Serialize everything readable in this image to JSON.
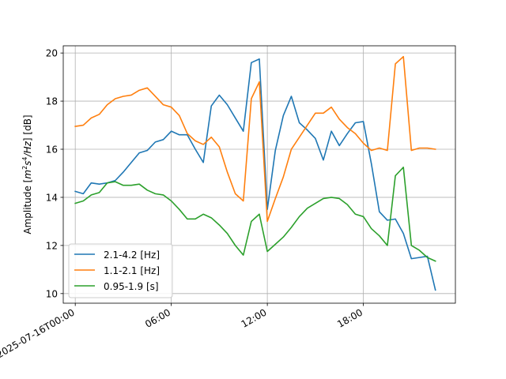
{
  "chart_data": {
    "type": "line",
    "title": "",
    "xlabel": "",
    "ylabel": "Amplitude [m²s⁴/Hz] [dB]",
    "ylabel_parts": {
      "prefix": "Amplitude [",
      "m": "m",
      "sup1": "2",
      "s": "s",
      "sup2": "4",
      "unit_rest": "/Hz",
      "suffix": "] [dB]"
    },
    "x_tick_labels": [
      "2025-07-16T00:00",
      "06:00",
      "12:00",
      "18:00"
    ],
    "x_ticks_hours": [
      0,
      6,
      12,
      18
    ],
    "xlim": [
      -0.75,
      23.75
    ],
    "ylim": [
      9.6,
      20.3
    ],
    "y_ticks": [
      10,
      12,
      14,
      16,
      18,
      20
    ],
    "y_tick_labels": [
      "10",
      "12",
      "14",
      "16",
      "18",
      "20"
    ],
    "grid": true,
    "legend_position": "lower-left",
    "series": [
      {
        "name": "2.1-4.2 [Hz]",
        "color": "#1f77b4",
        "x": [
          0,
          0.5,
          1,
          1.5,
          2,
          2.5,
          3,
          3.5,
          4,
          4.5,
          5,
          5.5,
          6,
          6.5,
          7,
          7.5,
          8,
          8.5,
          9,
          9.5,
          10,
          10.5,
          11,
          11.5,
          12,
          12.5,
          13,
          13.5,
          14,
          14.5,
          15,
          15.5,
          16,
          16.5,
          17,
          17.5,
          18,
          18.5,
          19,
          19.5,
          20,
          20.5,
          21,
          21.5,
          22,
          22.5
        ],
        "y": [
          14.25,
          14.15,
          14.6,
          14.55,
          14.6,
          14.7,
          15.05,
          15.45,
          15.85,
          15.95,
          16.3,
          16.4,
          16.75,
          16.6,
          16.6,
          16.0,
          15.45,
          17.8,
          18.25,
          17.85,
          17.3,
          16.75,
          19.6,
          19.75,
          13.5,
          15.95,
          17.4,
          18.2,
          17.1,
          16.8,
          16.45,
          15.55,
          16.75,
          16.15,
          16.65,
          17.1,
          17.15,
          15.4,
          13.4,
          13.05,
          13.1,
          12.5,
          11.45,
          11.5,
          11.55,
          10.15
        ]
      },
      {
        "name": "1.1-2.1 [Hz]",
        "color": "#ff7f0e",
        "x": [
          0,
          0.5,
          1,
          1.5,
          2,
          2.5,
          3,
          3.5,
          4,
          4.5,
          5,
          5.5,
          6,
          6.5,
          7,
          7.5,
          8,
          8.5,
          9,
          9.5,
          10,
          10.5,
          11,
          11.5,
          12,
          12.5,
          13,
          13.5,
          14,
          14.5,
          15,
          15.5,
          16,
          16.5,
          17,
          17.5,
          18,
          18.5,
          19,
          19.5,
          20,
          20.5,
          21,
          21.5,
          22,
          22.5
        ],
        "y": [
          16.95,
          17.0,
          17.3,
          17.45,
          17.85,
          18.1,
          18.2,
          18.25,
          18.45,
          18.55,
          18.2,
          17.85,
          17.75,
          17.4,
          16.65,
          16.35,
          16.2,
          16.5,
          16.1,
          15.05,
          14.15,
          13.85,
          18.1,
          18.8,
          13.0,
          13.95,
          14.85,
          16.0,
          16.5,
          17.0,
          17.5,
          17.5,
          17.75,
          17.25,
          16.9,
          16.65,
          16.25,
          15.95,
          16.05,
          15.95,
          19.55,
          19.85,
          15.95,
          16.05,
          16.05,
          16.0
        ]
      },
      {
        "name": "0.95-1.9 [s]",
        "color": "#2ca02c",
        "x": [
          0,
          0.5,
          1,
          1.5,
          2,
          2.5,
          3,
          3.5,
          4,
          4.5,
          5,
          5.5,
          6,
          6.5,
          7,
          7.5,
          8,
          8.5,
          9,
          9.5,
          10,
          10.5,
          11,
          11.5,
          12,
          12.5,
          13,
          13.5,
          14,
          14.5,
          15,
          15.5,
          16,
          16.5,
          17,
          17.5,
          18,
          18.5,
          19,
          19.5,
          20,
          20.5,
          21,
          21.5,
          22,
          22.5
        ],
        "y": [
          13.75,
          13.85,
          14.1,
          14.2,
          14.6,
          14.65,
          14.5,
          14.5,
          14.55,
          14.3,
          14.15,
          14.1,
          13.85,
          13.5,
          13.1,
          13.1,
          13.3,
          13.15,
          12.85,
          12.5,
          12.0,
          11.6,
          13.0,
          13.3,
          11.75,
          12.05,
          12.35,
          12.75,
          13.2,
          13.55,
          13.75,
          13.95,
          14.0,
          13.95,
          13.7,
          13.3,
          13.2,
          12.7,
          12.4,
          12.0,
          14.9,
          15.25,
          12.0,
          11.8,
          11.5,
          11.35
        ]
      }
    ]
  }
}
